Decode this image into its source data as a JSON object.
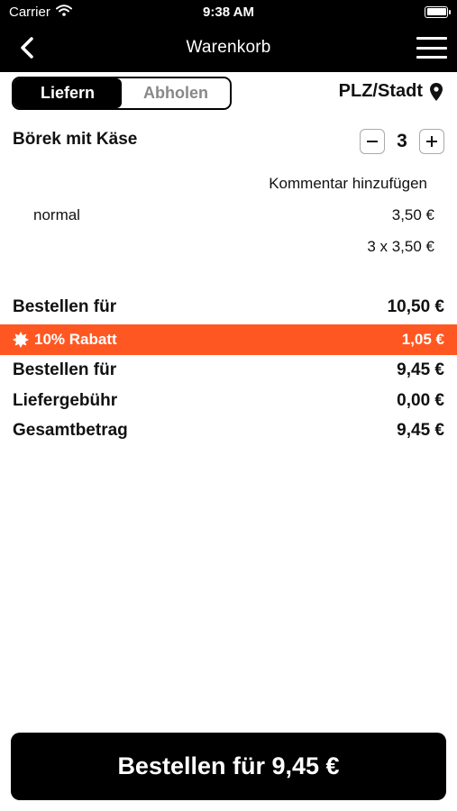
{
  "status_bar": {
    "carrier": "Carrier",
    "time": "9:38 AM",
    "icons": [
      "wifi-icon",
      "battery-icon"
    ]
  },
  "nav": {
    "title": "Warenkorb",
    "icons": [
      "back-chevron-icon",
      "hamburger-menu-icon"
    ]
  },
  "order_type": {
    "options": [
      "Liefern",
      "Abholen"
    ],
    "selected": "Liefern"
  },
  "location": {
    "label": "PLZ/Stadt",
    "icon": "map-pin-icon"
  },
  "cart_item": {
    "name": "Börek mit Käse",
    "quantity": "3",
    "comment_link": "Kommentar hinzufügen",
    "option_name": "normal",
    "option_price": "3,50 €",
    "line_total": "3 x 3,50 €"
  },
  "summary": {
    "subtotal_label": "Bestellen für",
    "subtotal_value": "10,50 €",
    "discount_label": "10% Rabatt",
    "discount_value": "1,05 €",
    "discounted_label": "Bestellen für",
    "discounted_value": "9,45 €",
    "delivery_label": "Liefergebühr",
    "delivery_value": "0,00 €",
    "total_label": "Gesamtbetrag",
    "total_value": "9,45 €"
  },
  "order_button": {
    "label": "Bestellen für 9,45 €"
  },
  "colors": {
    "header": "#000000",
    "discount": "#ff5722",
    "text": "#111111",
    "inactive": "#888888"
  }
}
